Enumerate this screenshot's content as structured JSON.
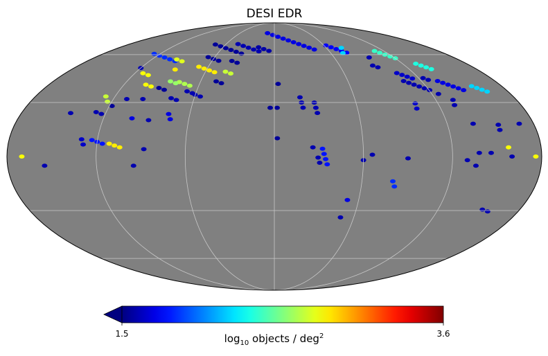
{
  "chart_data": {
    "type": "heatmap",
    "projection": "mollweide",
    "title": "DESI EDR",
    "background_color": "#808080",
    "graticule_color": "#c8c8c8",
    "colormap": "jet",
    "colorbar": {
      "min": 1.5,
      "max": 3.6,
      "min_label": "1.5",
      "max_label": "3.6",
      "extend": "min",
      "label_pre": "log",
      "label_sub": "10",
      "label_mid": " objects / deg",
      "label_sup": "2"
    },
    "fields": [
      {
        "lon": -52,
        "lat": 64,
        "v": 1.55,
        "n": 6,
        "dir": "h"
      },
      {
        "lon": -30,
        "lat": 65,
        "v": 1.6,
        "n": 5,
        "dir": "h"
      },
      {
        "lon": -12,
        "lat": 64,
        "v": 1.58,
        "n": 3,
        "dir": "h"
      },
      {
        "lon": 22,
        "lat": 70,
        "v": 1.7,
        "n": 10,
        "dir": "h"
      },
      {
        "lon": 70,
        "lat": 64,
        "v": 1.75,
        "n": 5,
        "dir": "h"
      },
      {
        "lon": -110,
        "lat": 58,
        "v": 1.85,
        "n": 5,
        "dir": "h"
      },
      {
        "lon": -92,
        "lat": 56,
        "v": 2.75,
        "n": 2,
        "dir": "h"
      },
      {
        "lon": -120,
        "lat": 51,
        "v": 1.6,
        "n": 1,
        "dir": "h"
      },
      {
        "lon": -110,
        "lat": 47,
        "v": 2.8,
        "n": 2,
        "dir": "h"
      },
      {
        "lon": -88,
        "lat": 50,
        "v": 2.85,
        "n": 1,
        "dir": "h"
      },
      {
        "lon": -60,
        "lat": 57,
        "v": 1.55,
        "n": 3,
        "dir": "h"
      },
      {
        "lon": -60,
        "lat": 50,
        "v": 2.85,
        "n": 4,
        "dir": "h"
      },
      {
        "lon": -38,
        "lat": 55,
        "v": 1.55,
        "n": 2,
        "dir": "h"
      },
      {
        "lon": -40,
        "lat": 48,
        "v": 2.7,
        "n": 2,
        "dir": "h"
      },
      {
        "lon": -72,
        "lat": 41,
        "v": 2.65,
        "n": 3,
        "dir": "h"
      },
      {
        "lon": -82,
        "lat": 42,
        "v": 2.6,
        "n": 2,
        "dir": "h"
      },
      {
        "lon": -100,
        "lat": 40,
        "v": 2.8,
        "n": 2,
        "dir": "h"
      },
      {
        "lon": -88,
        "lat": 38,
        "v": 1.55,
        "n": 2,
        "dir": "h"
      },
      {
        "lon": -65,
        "lat": 36,
        "v": 1.6,
        "n": 2,
        "dir": "h"
      },
      {
        "lon": -58,
        "lat": 34,
        "v": 1.6,
        "n": 2,
        "dir": "h"
      },
      {
        "lon": -75,
        "lat": 32,
        "v": 1.6,
        "n": 2,
        "dir": "h"
      },
      {
        "lon": -45,
        "lat": 42,
        "v": 1.55,
        "n": 2,
        "dir": "h"
      },
      {
        "lon": -110,
        "lat": 32,
        "v": 1.6,
        "n": 1,
        "dir": "h"
      },
      {
        "lon": -98,
        "lat": 32,
        "v": 1.6,
        "n": 1,
        "dir": "h"
      },
      {
        "lon": -118,
        "lat": 28,
        "v": 1.55,
        "n": 1,
        "dir": "h"
      },
      {
        "lon": -125,
        "lat": 32,
        "v": 2.7,
        "n": 2,
        "dir": "v"
      },
      {
        "lon": -125,
        "lat": 24,
        "v": 1.6,
        "n": 2,
        "dir": "h"
      },
      {
        "lon": -100,
        "lat": 21,
        "v": 1.7,
        "n": 1,
        "dir": "h"
      },
      {
        "lon": -88,
        "lat": 20,
        "v": 1.6,
        "n": 1,
        "dir": "h"
      },
      {
        "lon": -74,
        "lat": 22,
        "v": 1.7,
        "n": 2,
        "dir": "v"
      },
      {
        "lon": -145,
        "lat": 24,
        "v": 1.6,
        "n": 1,
        "dir": "h"
      },
      {
        "lon": -120,
        "lat": 8,
        "v": 1.8,
        "n": 3,
        "dir": "h"
      },
      {
        "lon": -108,
        "lat": 6,
        "v": 2.85,
        "n": 3,
        "dir": "h"
      },
      {
        "lon": -170,
        "lat": 0,
        "v": 2.8,
        "n": 1,
        "dir": "h"
      },
      {
        "lon": -155,
        "lat": -5,
        "v": 1.6,
        "n": 1,
        "dir": "h"
      },
      {
        "lon": -95,
        "lat": -5,
        "v": 1.6,
        "n": 1,
        "dir": "h"
      },
      {
        "lon": -88,
        "lat": 4,
        "v": 1.6,
        "n": 1,
        "dir": "h"
      },
      {
        "lon": -130,
        "lat": 8,
        "v": 1.65,
        "n": 2,
        "dir": "v"
      },
      {
        "lon": 3,
        "lat": 41,
        "v": 1.55,
        "n": 1,
        "dir": "h"
      },
      {
        "lon": -3,
        "lat": 27,
        "v": 1.55,
        "n": 1,
        "dir": "h"
      },
      {
        "lon": 2,
        "lat": 27,
        "v": 1.55,
        "n": 1,
        "dir": "h"
      },
      {
        "lon": 2,
        "lat": 10,
        "v": 1.55,
        "n": 1,
        "dir": "h"
      },
      {
        "lon": 20,
        "lat": 30,
        "v": 1.6,
        "n": 3,
        "dir": "v"
      },
      {
        "lon": 30,
        "lat": 27,
        "v": 1.6,
        "n": 3,
        "dir": "v"
      },
      {
        "lon": 26,
        "lat": 5,
        "v": 1.6,
        "n": 1,
        "dir": "h"
      },
      {
        "lon": 34,
        "lat": 0,
        "v": 1.8,
        "n": 4,
        "dir": "v"
      },
      {
        "lon": 30,
        "lat": -2,
        "v": 1.6,
        "n": 2,
        "dir": "v"
      },
      {
        "lon": 60,
        "lat": -2,
        "v": 1.6,
        "n": 1,
        "dir": "h"
      },
      {
        "lon": 66,
        "lat": 1,
        "v": 1.6,
        "n": 1,
        "dir": "h"
      },
      {
        "lon": 90,
        "lat": -1,
        "v": 1.6,
        "n": 1,
        "dir": "h"
      },
      {
        "lon": 82,
        "lat": -15,
        "v": 1.85,
        "n": 2,
        "dir": "v"
      },
      {
        "lon": 52,
        "lat": -24,
        "v": 1.7,
        "n": 1,
        "dir": "h"
      },
      {
        "lon": 75,
        "lat": 63,
        "v": 2.2,
        "n": 2,
        "dir": "v"
      },
      {
        "lon": 95,
        "lat": 58,
        "v": 1.6,
        "n": 1,
        "dir": "h"
      },
      {
        "lon": 92,
        "lat": 52,
        "v": 1.6,
        "n": 2,
        "dir": "h"
      },
      {
        "lon": 110,
        "lat": 46,
        "v": 1.65,
        "n": 4,
        "dir": "h"
      },
      {
        "lon": 115,
        "lat": 60,
        "v": 2.4,
        "n": 5,
        "dir": "h"
      },
      {
        "lon": 136,
        "lat": 52,
        "v": 2.35,
        "n": 4,
        "dir": "h"
      },
      {
        "lon": 113,
        "lat": 40,
        "v": 1.6,
        "n": 6,
        "dir": "h"
      },
      {
        "lon": 140,
        "lat": 40,
        "v": 1.7,
        "n": 6,
        "dir": "h"
      },
      {
        "lon": 160,
        "lat": 38,
        "v": 2.2,
        "n": 4,
        "dir": "h"
      },
      {
        "lon": 125,
        "lat": 44,
        "v": 1.6,
        "n": 2,
        "dir": "h"
      },
      {
        "lon": 103,
        "lat": 28,
        "v": 1.65,
        "n": 2,
        "dir": "v"
      },
      {
        "lon": 125,
        "lat": 35,
        "v": 1.6,
        "n": 1,
        "dir": "h"
      },
      {
        "lon": 132,
        "lat": 30,
        "v": 1.6,
        "n": 2,
        "dir": "v"
      },
      {
        "lon": 138,
        "lat": 18,
        "v": 1.6,
        "n": 1,
        "dir": "h"
      },
      {
        "lon": 155,
        "lat": 16,
        "v": 1.6,
        "n": 2,
        "dir": "v"
      },
      {
        "lon": 170,
        "lat": 18,
        "v": 1.6,
        "n": 1,
        "dir": "h"
      },
      {
        "lon": 158,
        "lat": 5,
        "v": 2.8,
        "n": 1,
        "dir": "h"
      },
      {
        "lon": 160,
        "lat": 0,
        "v": 1.6,
        "n": 1,
        "dir": "h"
      },
      {
        "lon": 138,
        "lat": 2,
        "v": 1.6,
        "n": 1,
        "dir": "h"
      },
      {
        "lon": 146,
        "lat": 2,
        "v": 1.6,
        "n": 1,
        "dir": "h"
      },
      {
        "lon": 176,
        "lat": 0,
        "v": 2.8,
        "n": 1,
        "dir": "h"
      },
      {
        "lon": 130,
        "lat": -2,
        "v": 1.6,
        "n": 1,
        "dir": "h"
      },
      {
        "lon": 136,
        "lat": -5,
        "v": 1.6,
        "n": 1,
        "dir": "h"
      },
      {
        "lon": 155,
        "lat": -30,
        "v": 1.6,
        "n": 2,
        "dir": "h"
      },
      {
        "lon": 50,
        "lat": -34,
        "v": 1.6,
        "n": 1,
        "dir": "h"
      }
    ]
  }
}
